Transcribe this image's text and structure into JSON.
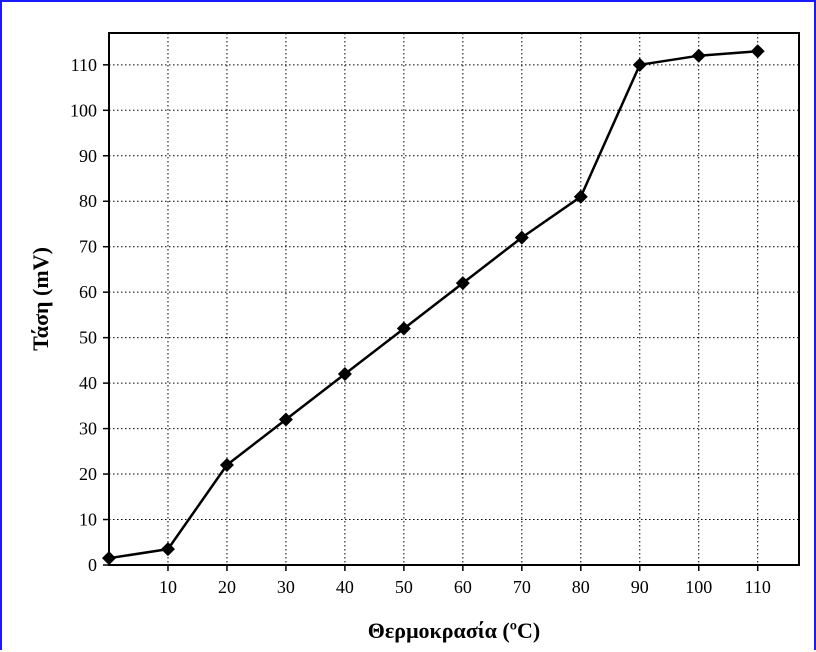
{
  "colors": {
    "frame_border": "#1a1aff",
    "line": "#000000",
    "grid": "#000000",
    "background": "#ffffff"
  },
  "chart_data": {
    "type": "line",
    "title": "",
    "xlabel": "Θερμοκρασία (ºC)",
    "ylabel": "Τάση (mV)",
    "xlim": [
      0,
      117
    ],
    "ylim": [
      0,
      117
    ],
    "xticks": [
      10,
      20,
      30,
      40,
      50,
      60,
      70,
      80,
      90,
      100,
      110
    ],
    "yticks": [
      0,
      10,
      20,
      30,
      40,
      50,
      60,
      70,
      80,
      90,
      100,
      110
    ],
    "grid": true,
    "grid_style": "dotted",
    "marker": "diamond",
    "series": [
      {
        "x": [
          0,
          10,
          20,
          30,
          40,
          50,
          60,
          70,
          80,
          90,
          100,
          110
        ],
        "values": [
          1.5,
          3.5,
          22,
          32,
          42,
          52,
          62,
          72,
          81,
          110,
          112,
          113
        ]
      }
    ]
  }
}
